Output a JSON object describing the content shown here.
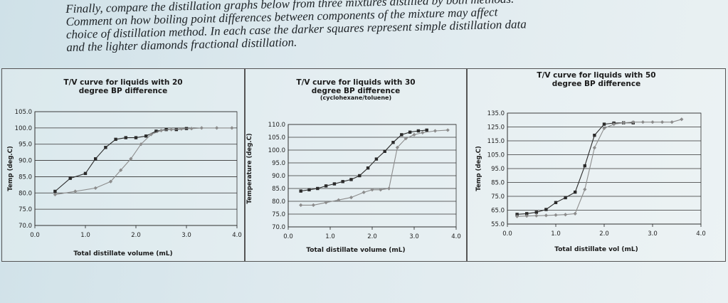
{
  "intro": {
    "lines": [
      "Finally, compare the distillation graphs below from three mixtures distilled by both methods.",
      "Comment on how boiling point differences between components of the mixture may affect",
      "choice of distillation method. In each case the darker squares represent simple distillation data",
      "and the lighter diamonds fractional distillation."
    ]
  },
  "chart_data": [
    {
      "type": "line",
      "title": [
        "T/V curve for liquids with 20",
        "degree BP difference"
      ],
      "subtitle": "",
      "xlabel": "Total distillate volume (mL)",
      "ylabel": "Temp (deg.C)",
      "xlim": [
        0,
        4
      ],
      "ylim": [
        70,
        105
      ],
      "xticks": [
        0,
        1,
        2,
        3,
        4
      ],
      "yticks": [
        70,
        75,
        80,
        85,
        90,
        95,
        100,
        105
      ],
      "series": [
        {
          "marker": "square",
          "color": "#2b2b2b",
          "x": [
            0.4,
            0.7,
            1.0,
            1.2,
            1.4,
            1.6,
            1.8,
            2.0,
            2.2,
            2.4,
            2.6,
            2.8,
            3.0
          ],
          "y": [
            80.5,
            84.5,
            86.0,
            90.5,
            94.0,
            96.5,
            97.0,
            97.0,
            97.5,
            99.0,
            99.5,
            99.5,
            99.8
          ]
        },
        {
          "marker": "diamond",
          "color": "#8c8c8c",
          "x": [
            0.4,
            0.8,
            1.2,
            1.5,
            1.7,
            1.9,
            2.1,
            2.3,
            2.5,
            2.7,
            2.9,
            3.1,
            3.3,
            3.6,
            3.9
          ],
          "y": [
            79.5,
            80.5,
            81.5,
            83.5,
            87.0,
            90.5,
            95.0,
            98.0,
            99.2,
            99.5,
            99.7,
            99.8,
            100.0,
            100.0,
            100.0
          ]
        }
      ]
    },
    {
      "type": "line",
      "title": [
        "T/V curve for liquids with 30",
        "degree BP difference"
      ],
      "subtitle": "(cyclohexane/toluene)",
      "xlabel": "Total distillate volume (mL)",
      "ylabel": "Temperature (deg.C)",
      "xlim": [
        0,
        4
      ],
      "ylim": [
        70,
        110
      ],
      "xticks": [
        0,
        1,
        2,
        3,
        4
      ],
      "yticks": [
        70,
        75,
        80,
        85,
        90,
        95,
        100,
        105,
        110
      ],
      "series": [
        {
          "marker": "square",
          "color": "#2b2b2b",
          "x": [
            0.3,
            0.5,
            0.7,
            0.9,
            1.1,
            1.3,
            1.5,
            1.7,
            1.9,
            2.1,
            2.3,
            2.5,
            2.7,
            2.9,
            3.1,
            3.3
          ],
          "y": [
            84.0,
            84.5,
            85.0,
            86.0,
            86.8,
            87.7,
            88.5,
            90.0,
            93.0,
            96.5,
            99.5,
            103.0,
            106.0,
            107.0,
            107.5,
            107.8
          ]
        },
        {
          "marker": "diamond",
          "color": "#8c8c8c",
          "x": [
            0.3,
            0.6,
            0.9,
            1.2,
            1.5,
            1.8,
            2.0,
            2.2,
            2.4,
            2.6,
            2.8,
            3.0,
            3.2,
            3.5,
            3.8
          ],
          "y": [
            78.5,
            78.5,
            79.5,
            80.5,
            81.5,
            83.5,
            84.5,
            84.5,
            85.0,
            101.0,
            104.5,
            106.0,
            106.8,
            107.5,
            107.8
          ]
        }
      ]
    },
    {
      "type": "line",
      "title": [
        "T/V curve for liquids with 50",
        "degree BP difference"
      ],
      "subtitle": "",
      "xlabel": "Total distillate vol (mL)",
      "ylabel": "Temp (deg.C)",
      "xlim": [
        0,
        4
      ],
      "ylim": [
        55,
        135
      ],
      "xticks": [
        0,
        1,
        2,
        3,
        4
      ],
      "yticks": [
        55,
        65,
        75,
        85,
        95,
        105,
        115,
        125,
        135
      ],
      "yticks_minor": [
        95
      ],
      "series": [
        {
          "marker": "square",
          "color": "#2b2b2b",
          "x": [
            0.2,
            0.4,
            0.6,
            0.8,
            1.0,
            1.2,
            1.4,
            1.6,
            1.8,
            2.0,
            2.2,
            2.4,
            2.6
          ],
          "y": [
            62.0,
            62.5,
            63.5,
            65.5,
            70.5,
            74.0,
            78.0,
            97.0,
            119.0,
            127.0,
            127.8,
            128.0,
            128.0
          ]
        },
        {
          "marker": "diamond",
          "color": "#8c8c8c",
          "x": [
            0.2,
            0.4,
            0.6,
            0.8,
            1.0,
            1.2,
            1.4,
            1.6,
            1.8,
            2.0,
            2.2,
            2.4,
            2.6,
            2.8,
            3.0,
            3.2,
            3.4,
            3.6
          ],
          "y": [
            60.5,
            60.8,
            61.0,
            61.2,
            61.5,
            61.8,
            62.5,
            80.0,
            110.0,
            124.0,
            127.0,
            128.0,
            128.5,
            128.5,
            128.5,
            128.5,
            128.5,
            130.5
          ]
        }
      ]
    }
  ]
}
